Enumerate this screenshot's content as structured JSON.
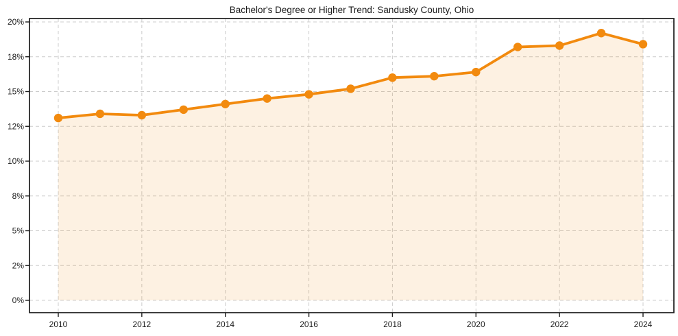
{
  "page": {
    "background": "#ffffff"
  },
  "chart_data": {
    "type": "line",
    "title": "Bachelor's Degree or Higher Trend: Sandusky County, Ohio",
    "x": [
      2010,
      2011,
      2012,
      2013,
      2014,
      2015,
      2016,
      2017,
      2018,
      2019,
      2020,
      2021,
      2022,
      2023,
      2024
    ],
    "values": [
      13.1,
      13.4,
      13.3,
      13.7,
      14.1,
      14.5,
      14.8,
      15.2,
      16.0,
      16.1,
      16.4,
      18.2,
      18.3,
      19.2,
      18.4
    ],
    "xlabel": "",
    "ylabel": "",
    "ylim": [
      0,
      20
    ],
    "x_ticks": [
      2010,
      2012,
      2014,
      2016,
      2018,
      2020,
      2022,
      2024
    ],
    "y_ticks": [
      {
        "value": 0,
        "label": "0%"
      },
      {
        "value": 2.5,
        "label": "2%"
      },
      {
        "value": 5,
        "label": "5%"
      },
      {
        "value": 7.5,
        "label": "8%"
      },
      {
        "value": 10,
        "label": "10%"
      },
      {
        "value": 12.5,
        "label": "12%"
      },
      {
        "value": 15,
        "label": "15%"
      },
      {
        "value": 17.5,
        "label": "18%"
      },
      {
        "value": 20,
        "label": "20%"
      }
    ],
    "grid": true,
    "legend": "none",
    "marker": "circle",
    "area_fill": true,
    "colors": {
      "line": "#f28a0e",
      "fill_opacity": 0.12,
      "grid": "#cccccc",
      "spine": "#1c1c1c",
      "tick_text": "#1c1c1c"
    }
  }
}
